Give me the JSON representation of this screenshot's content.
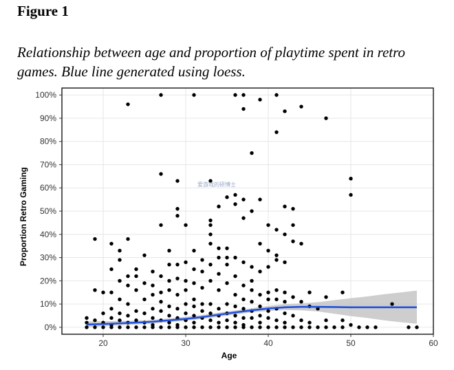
{
  "figure": {
    "label": "Figure 1",
    "caption": "Relationship between age and proportion of playtime spent in retro games. Blue line generated using loess."
  },
  "watermark": "爱游戏的研博士",
  "chart_data": {
    "type": "scatter",
    "title": "",
    "xlabel": "Age",
    "ylabel": "Proportion Retro Gaming",
    "xlim": [
      15,
      60
    ],
    "ylim": [
      -0.03,
      1.03
    ],
    "x_ticks": [
      20,
      30,
      40,
      50,
      60
    ],
    "y_ticks": [
      0,
      0.1,
      0.2,
      0.3,
      0.4,
      0.5,
      0.6,
      0.7,
      0.8,
      0.9,
      1.0
    ],
    "y_tick_labels": [
      "0%",
      "10%",
      "20%",
      "30%",
      "40%",
      "50%",
      "60%",
      "70%",
      "80%",
      "90%",
      "100%"
    ],
    "grid": true,
    "colors": {
      "points": "#000000",
      "loess": "#1f4fdc",
      "band": "#bdbdbd",
      "grid": "#e6e6e6"
    },
    "loess": {
      "x": [
        18,
        20,
        22,
        24,
        26,
        28,
        30,
        32,
        34,
        36,
        38,
        40,
        42,
        44,
        46,
        48,
        50,
        52,
        54,
        56,
        58
      ],
      "y": [
        0.012,
        0.014,
        0.017,
        0.02,
        0.024,
        0.03,
        0.036,
        0.044,
        0.054,
        0.064,
        0.073,
        0.081,
        0.086,
        0.088,
        0.088,
        0.087,
        0.086,
        0.086,
        0.086,
        0.086,
        0.086
      ],
      "lower": [
        0.0,
        0.004,
        0.008,
        0.012,
        0.016,
        0.022,
        0.028,
        0.036,
        0.045,
        0.055,
        0.064,
        0.07,
        0.074,
        0.073,
        0.068,
        0.058,
        0.048,
        0.04,
        0.03,
        0.022,
        0.015
      ],
      "upper": [
        0.025,
        0.026,
        0.027,
        0.029,
        0.032,
        0.038,
        0.045,
        0.053,
        0.063,
        0.073,
        0.082,
        0.092,
        0.099,
        0.103,
        0.108,
        0.117,
        0.125,
        0.133,
        0.142,
        0.15,
        0.158
      ]
    },
    "points": [
      [
        23,
        0.96
      ],
      [
        27,
        1.0
      ],
      [
        31,
        1.0
      ],
      [
        36,
        1.0
      ],
      [
        37,
        1.0
      ],
      [
        37,
        0.94
      ],
      [
        39,
        0.98
      ],
      [
        41,
        1.0
      ],
      [
        42,
        0.93
      ],
      [
        44,
        0.95
      ],
      [
        47,
        0.9
      ],
      [
        41,
        0.84
      ],
      [
        38,
        0.75
      ],
      [
        27,
        0.66
      ],
      [
        29,
        0.63
      ],
      [
        33,
        0.63
      ],
      [
        35,
        0.56
      ],
      [
        36,
        0.57
      ],
      [
        37,
        0.55
      ],
      [
        38,
        0.5
      ],
      [
        39,
        0.55
      ],
      [
        37,
        0.47
      ],
      [
        36,
        0.53
      ],
      [
        34,
        0.52
      ],
      [
        29,
        0.51
      ],
      [
        29,
        0.48
      ],
      [
        27,
        0.44
      ],
      [
        30,
        0.44
      ],
      [
        42,
        0.52
      ],
      [
        43,
        0.51
      ],
      [
        40,
        0.44
      ],
      [
        41,
        0.42
      ],
      [
        42,
        0.4
      ],
      [
        43,
        0.37
      ],
      [
        44,
        0.36
      ],
      [
        43,
        0.44
      ],
      [
        39,
        0.36
      ],
      [
        40,
        0.33
      ],
      [
        41,
        0.31
      ],
      [
        42,
        0.28
      ],
      [
        45,
        0.15
      ],
      [
        50,
        0.64
      ],
      [
        50,
        0.57
      ],
      [
        55,
        0.1
      ],
      [
        58,
        0.0
      ],
      [
        57,
        0.0
      ],
      [
        19,
        0.38
      ],
      [
        21,
        0.36
      ],
      [
        22,
        0.33
      ],
      [
        23,
        0.38
      ],
      [
        25,
        0.31
      ],
      [
        28,
        0.33
      ],
      [
        31,
        0.33
      ],
      [
        33,
        0.46
      ],
      [
        33,
        0.44
      ],
      [
        33,
        0.4
      ],
      [
        34,
        0.34
      ],
      [
        35,
        0.3
      ],
      [
        36,
        0.22
      ],
      [
        37,
        0.28
      ],
      [
        38,
        0.26
      ],
      [
        38,
        0.2
      ],
      [
        39,
        0.24
      ],
      [
        40,
        0.26
      ],
      [
        41,
        0.29
      ],
      [
        45,
        0.09
      ],
      [
        47,
        0.13
      ],
      [
        49,
        0.15
      ],
      [
        19,
        0.16
      ],
      [
        20,
        0.15
      ],
      [
        21,
        0.25
      ],
      [
        21,
        0.15
      ],
      [
        21,
        0.08
      ],
      [
        22,
        0.29
      ],
      [
        22,
        0.2
      ],
      [
        22,
        0.12
      ],
      [
        23,
        0.22
      ],
      [
        23,
        0.18
      ],
      [
        23,
        0.1
      ],
      [
        24,
        0.16
      ],
      [
        24,
        0.25
      ],
      [
        24,
        0.22
      ],
      [
        25,
        0.19
      ],
      [
        25,
        0.12
      ],
      [
        26,
        0.24
      ],
      [
        26,
        0.18
      ],
      [
        26,
        0.14
      ],
      [
        27,
        0.22
      ],
      [
        27,
        0.15
      ],
      [
        27,
        0.11
      ],
      [
        28,
        0.27
      ],
      [
        28,
        0.2
      ],
      [
        28,
        0.16
      ],
      [
        29,
        0.27
      ],
      [
        29,
        0.21
      ],
      [
        29,
        0.14
      ],
      [
        30,
        0.28
      ],
      [
        30,
        0.2
      ],
      [
        30,
        0.16
      ],
      [
        31,
        0.25
      ],
      [
        31,
        0.19
      ],
      [
        31,
        0.12
      ],
      [
        32,
        0.29
      ],
      [
        32,
        0.24
      ],
      [
        32,
        0.17
      ],
      [
        32,
        0.1
      ],
      [
        33,
        0.36
      ],
      [
        33,
        0.27
      ],
      [
        33,
        0.2
      ],
      [
        34,
        0.3
      ],
      [
        34,
        0.23
      ],
      [
        34,
        0.16
      ],
      [
        35,
        0.34
      ],
      [
        35,
        0.27
      ],
      [
        35,
        0.19
      ],
      [
        36,
        0.3
      ],
      [
        36,
        0.14
      ],
      [
        37,
        0.18
      ],
      [
        37,
        0.12
      ],
      [
        38,
        0.16
      ],
      [
        38,
        0.11
      ],
      [
        39,
        0.14
      ],
      [
        40,
        0.15
      ],
      [
        40,
        0.12
      ],
      [
        41,
        0.16
      ],
      [
        41,
        0.12
      ],
      [
        42,
        0.15
      ],
      [
        42,
        0.11
      ],
      [
        43,
        0.13
      ],
      [
        44,
        0.11
      ],
      [
        46,
        0.08
      ],
      [
        18,
        0.04
      ],
      [
        18,
        0.02
      ],
      [
        18,
        0.0
      ],
      [
        19,
        0.03
      ],
      [
        19,
        0.0
      ],
      [
        20,
        0.06
      ],
      [
        20,
        0.02
      ],
      [
        20,
        0.0
      ],
      [
        21,
        0.04
      ],
      [
        21,
        0.01
      ],
      [
        21,
        0.0
      ],
      [
        22,
        0.06
      ],
      [
        22,
        0.03
      ],
      [
        22,
        0.0
      ],
      [
        23,
        0.05
      ],
      [
        23,
        0.02
      ],
      [
        23,
        0.0
      ],
      [
        24,
        0.07
      ],
      [
        24,
        0.03
      ],
      [
        24,
        0.0
      ],
      [
        25,
        0.06
      ],
      [
        25,
        0.02
      ],
      [
        25,
        0.0
      ],
      [
        26,
        0.08
      ],
      [
        26,
        0.04
      ],
      [
        26,
        0.01
      ],
      [
        26,
        0.0
      ],
      [
        27,
        0.07
      ],
      [
        27,
        0.03
      ],
      [
        27,
        0.0
      ],
      [
        28,
        0.09
      ],
      [
        28,
        0.05
      ],
      [
        28,
        0.02
      ],
      [
        28,
        0.0
      ],
      [
        29,
        0.08
      ],
      [
        29,
        0.04
      ],
      [
        29,
        0.01
      ],
      [
        29,
        0.0
      ],
      [
        30,
        0.1
      ],
      [
        30,
        0.06
      ],
      [
        30,
        0.03
      ],
      [
        30,
        0.0
      ],
      [
        31,
        0.09
      ],
      [
        31,
        0.05
      ],
      [
        31,
        0.02
      ],
      [
        31,
        0.0
      ],
      [
        32,
        0.07
      ],
      [
        32,
        0.04
      ],
      [
        32,
        0.0
      ],
      [
        33,
        0.1
      ],
      [
        33,
        0.06
      ],
      [
        33,
        0.03
      ],
      [
        33,
        0.0
      ],
      [
        34,
        0.08
      ],
      [
        34,
        0.05
      ],
      [
        34,
        0.02
      ],
      [
        34,
        0.0
      ],
      [
        35,
        0.1
      ],
      [
        35,
        0.06
      ],
      [
        35,
        0.03
      ],
      [
        35,
        0.0
      ],
      [
        36,
        0.09
      ],
      [
        36,
        0.05
      ],
      [
        36,
        0.02
      ],
      [
        36,
        0.0
      ],
      [
        37,
        0.08
      ],
      [
        37,
        0.04
      ],
      [
        37,
        0.01
      ],
      [
        37,
        0.0
      ],
      [
        38,
        0.07
      ],
      [
        38,
        0.04
      ],
      [
        38,
        0.0
      ],
      [
        39,
        0.09
      ],
      [
        39,
        0.05
      ],
      [
        39,
        0.02
      ],
      [
        39,
        0.0
      ],
      [
        40,
        0.07
      ],
      [
        40,
        0.04
      ],
      [
        40,
        0.0
      ],
      [
        41,
        0.08
      ],
      [
        41,
        0.03
      ],
      [
        41,
        0.0
      ],
      [
        42,
        0.06
      ],
      [
        42,
        0.02
      ],
      [
        42,
        0.0
      ],
      [
        43,
        0.05
      ],
      [
        43,
        0.0
      ],
      [
        44,
        0.03
      ],
      [
        44,
        0.0
      ],
      [
        45,
        0.02
      ],
      [
        45,
        0.0
      ],
      [
        46,
        0.0
      ],
      [
        47,
        0.03
      ],
      [
        47,
        0.0
      ],
      [
        48,
        0.0
      ],
      [
        49,
        0.03
      ],
      [
        49,
        0.0
      ],
      [
        50,
        0.01
      ],
      [
        51,
        0.0
      ],
      [
        52,
        0.0
      ],
      [
        53,
        0.0
      ]
    ]
  }
}
